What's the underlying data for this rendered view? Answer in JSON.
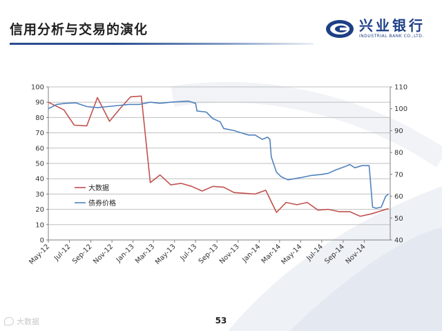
{
  "slide": {
    "title": "信用分析与交易的演化",
    "page_number": "53"
  },
  "logo": {
    "name_cn": "兴业银行",
    "name_en": "INDUSTRIAL BANK CO.,LTD.",
    "icon": "industrial-bank-logo-icon",
    "color": "#1d3f86"
  },
  "watermark": {
    "text": "大数据"
  },
  "colors": {
    "series_big_data": "#c0504d",
    "series_bond_price": "#4f81bd",
    "grid": "#bfbfbf"
  },
  "chart_data": {
    "type": "line",
    "title": "",
    "xlabel": "",
    "ylabel": "",
    "x_tick_labels": [
      "May-12",
      "Jul-12",
      "Sep-12",
      "Nov-12",
      "Jan-13",
      "Mar-13",
      "May-13",
      "Jul-13",
      "Sep-13",
      "Nov-13",
      "Jan-14",
      "Mar-14",
      "May-14",
      "Jul-14",
      "Sep-14",
      "Nov-14"
    ],
    "x_range": [
      "2012-05-01",
      "2015-01-15"
    ],
    "y_left": {
      "range": [
        0,
        100
      ],
      "ticks": [
        0,
        10,
        20,
        30,
        40,
        50,
        60,
        70,
        80,
        90,
        100
      ]
    },
    "y_right": {
      "range": [
        40,
        110
      ],
      "ticks": [
        40,
        50,
        60,
        70,
        80,
        90,
        100,
        110
      ]
    },
    "grid": "horizontal",
    "legend": {
      "position": "left-middle",
      "entries": [
        "大数据",
        "债券价格"
      ]
    },
    "series": [
      {
        "name": "大数据",
        "axis": "left",
        "color": "#c0504d",
        "points": [
          [
            "2012-05-01",
            90
          ],
          [
            "2012-06-15",
            85
          ],
          [
            "2012-07-15",
            75
          ],
          [
            "2012-08-20",
            74.5
          ],
          [
            "2012-09-20",
            93
          ],
          [
            "2012-10-25",
            77.5
          ],
          [
            "2012-11-25",
            86
          ],
          [
            "2012-12-25",
            93.5
          ],
          [
            "2013-01-25",
            94
          ],
          [
            "2013-02-20",
            37.5
          ],
          [
            "2013-03-20",
            42.5
          ],
          [
            "2013-04-20",
            36
          ],
          [
            "2013-05-20",
            37
          ],
          [
            "2013-06-20",
            35
          ],
          [
            "2013-07-20",
            32
          ],
          [
            "2013-08-20",
            35
          ],
          [
            "2013-09-20",
            34.5
          ],
          [
            "2013-10-20",
            31
          ],
          [
            "2013-11-20",
            30.5
          ],
          [
            "2013-12-20",
            30
          ],
          [
            "2014-01-20",
            32.5
          ],
          [
            "2014-02-20",
            18
          ],
          [
            "2014-03-20",
            24.5
          ],
          [
            "2014-04-20",
            23
          ],
          [
            "2014-05-20",
            24.5
          ],
          [
            "2014-06-20",
            19.5
          ],
          [
            "2014-07-20",
            20
          ],
          [
            "2014-08-20",
            18.5
          ],
          [
            "2014-09-20",
            18.5
          ],
          [
            "2014-10-20",
            15.5
          ],
          [
            "2014-11-20",
            17
          ],
          [
            "2015-01-10",
            20.5
          ]
        ]
      },
      {
        "name": "债券价格",
        "axis": "right",
        "color": "#4f81bd",
        "points": [
          [
            "2012-05-01",
            100
          ],
          [
            "2012-05-25",
            102
          ],
          [
            "2012-06-20",
            102.5
          ],
          [
            "2012-07-20",
            102.7
          ],
          [
            "2012-08-20",
            101
          ],
          [
            "2012-09-20",
            100.5
          ],
          [
            "2012-10-20",
            101
          ],
          [
            "2012-11-20",
            101.5
          ],
          [
            "2012-12-20",
            102
          ],
          [
            "2013-01-20",
            102
          ],
          [
            "2013-02-20",
            103
          ],
          [
            "2013-03-20",
            102.5
          ],
          [
            "2013-04-20",
            103
          ],
          [
            "2013-05-20",
            103.3
          ],
          [
            "2013-06-10",
            103.5
          ],
          [
            "2013-07-01",
            102.5
          ],
          [
            "2013-07-05",
            99
          ],
          [
            "2013-08-01",
            98.5
          ],
          [
            "2013-08-20",
            95.5
          ],
          [
            "2013-09-10",
            94
          ],
          [
            "2013-09-20",
            91
          ],
          [
            "2013-10-20",
            90
          ],
          [
            "2013-11-10",
            89
          ],
          [
            "2013-12-01",
            88
          ],
          [
            "2013-12-20",
            88
          ],
          [
            "2014-01-10",
            86
          ],
          [
            "2014-01-25",
            87
          ],
          [
            "2014-02-01",
            86
          ],
          [
            "2014-02-05",
            78
          ],
          [
            "2014-02-20",
            71
          ],
          [
            "2014-03-05",
            69
          ],
          [
            "2014-03-25",
            67.5
          ],
          [
            "2014-05-01",
            68.5
          ],
          [
            "2014-06-01",
            69.5
          ],
          [
            "2014-07-01",
            70
          ],
          [
            "2014-07-20",
            70.5
          ],
          [
            "2014-08-10",
            72
          ],
          [
            "2014-09-05",
            73.5
          ],
          [
            "2014-09-20",
            74.5
          ],
          [
            "2014-10-05",
            73
          ],
          [
            "2014-10-25",
            74
          ],
          [
            "2014-11-15",
            74
          ],
          [
            "2014-11-25",
            55
          ],
          [
            "2014-12-05",
            54.5
          ],
          [
            "2014-12-20",
            55
          ],
          [
            "2015-01-02",
            60
          ],
          [
            "2015-01-10",
            61
          ]
        ]
      }
    ]
  }
}
